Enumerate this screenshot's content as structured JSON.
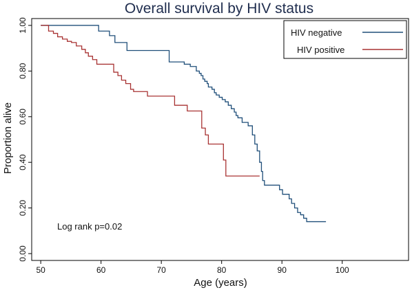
{
  "chart_data": {
    "type": "line",
    "step": true,
    "title": "Overall survival by HIV status",
    "xlabel": "Age (years)",
    "ylabel": "Proportion alive",
    "xlim": [
      48.5,
      111
    ],
    "ylim": [
      -0.03,
      1.03
    ],
    "xticks": [
      50,
      60,
      70,
      80,
      90,
      100
    ],
    "yticks": [
      0,
      0.2,
      0.4,
      0.6,
      0.8,
      1.0
    ],
    "ytick_labels": [
      "0.00",
      "0.20",
      "0.40",
      "0.60",
      "0.80",
      "1.00"
    ],
    "grid": false,
    "legend_position": "top-right",
    "annotation": "Log rank p=0.02",
    "series": [
      {
        "name": "HIV negative",
        "color": "#1f4e79",
        "x": [
          50,
          59,
          59.6,
          61,
          61.4,
          62.3,
          64.3,
          71.3,
          71.8,
          73.8,
          74.8,
          75.8,
          76.3,
          76.6,
          76.9,
          77.2,
          77.6,
          77.8,
          78.4,
          78.8,
          79.1,
          79.6,
          80.1,
          80.6,
          81.1,
          81.6,
          82.1,
          82.4,
          82.7,
          83.4,
          84.4,
          85.1,
          85.5,
          85.9,
          86.3,
          86.6,
          86.8,
          87.1,
          89.3,
          89.6,
          90.1,
          90.6,
          91.2,
          91.6,
          92.1,
          92.6,
          93.1,
          93.6,
          94.1,
          94.5,
          97.3
        ],
        "y": [
          1.0,
          1.0,
          0.975,
          0.975,
          0.955,
          0.925,
          0.89,
          0.84,
          0.84,
          0.83,
          0.82,
          0.8,
          0.79,
          0.78,
          0.765,
          0.755,
          0.745,
          0.73,
          0.72,
          0.705,
          0.695,
          0.685,
          0.675,
          0.665,
          0.65,
          0.635,
          0.62,
          0.605,
          0.595,
          0.575,
          0.56,
          0.52,
          0.48,
          0.45,
          0.4,
          0.36,
          0.32,
          0.3,
          0.3,
          0.28,
          0.26,
          0.26,
          0.24,
          0.22,
          0.2,
          0.18,
          0.17,
          0.155,
          0.14,
          0.14,
          0.14
        ]
      },
      {
        "name": "HIV positive",
        "color": "#a83232",
        "x": [
          50,
          51.3,
          52.1,
          52.8,
          53.6,
          54.4,
          55.1,
          55.9,
          56.8,
          57.4,
          57.9,
          58.6,
          59.3,
          59.9,
          62.1,
          62.8,
          63.4,
          64.1,
          64.9,
          65.4,
          66.2,
          67.7,
          68.4,
          72.2,
          74.3,
          76.7,
          77.3,
          77.8,
          80.3,
          80.7,
          86.3
        ],
        "y": [
          1.0,
          0.975,
          0.965,
          0.95,
          0.94,
          0.93,
          0.925,
          0.91,
          0.895,
          0.88,
          0.865,
          0.85,
          0.83,
          0.83,
          0.795,
          0.78,
          0.76,
          0.745,
          0.72,
          0.71,
          0.71,
          0.69,
          0.69,
          0.65,
          0.625,
          0.55,
          0.52,
          0.48,
          0.41,
          0.34,
          0.34
        ]
      }
    ]
  }
}
